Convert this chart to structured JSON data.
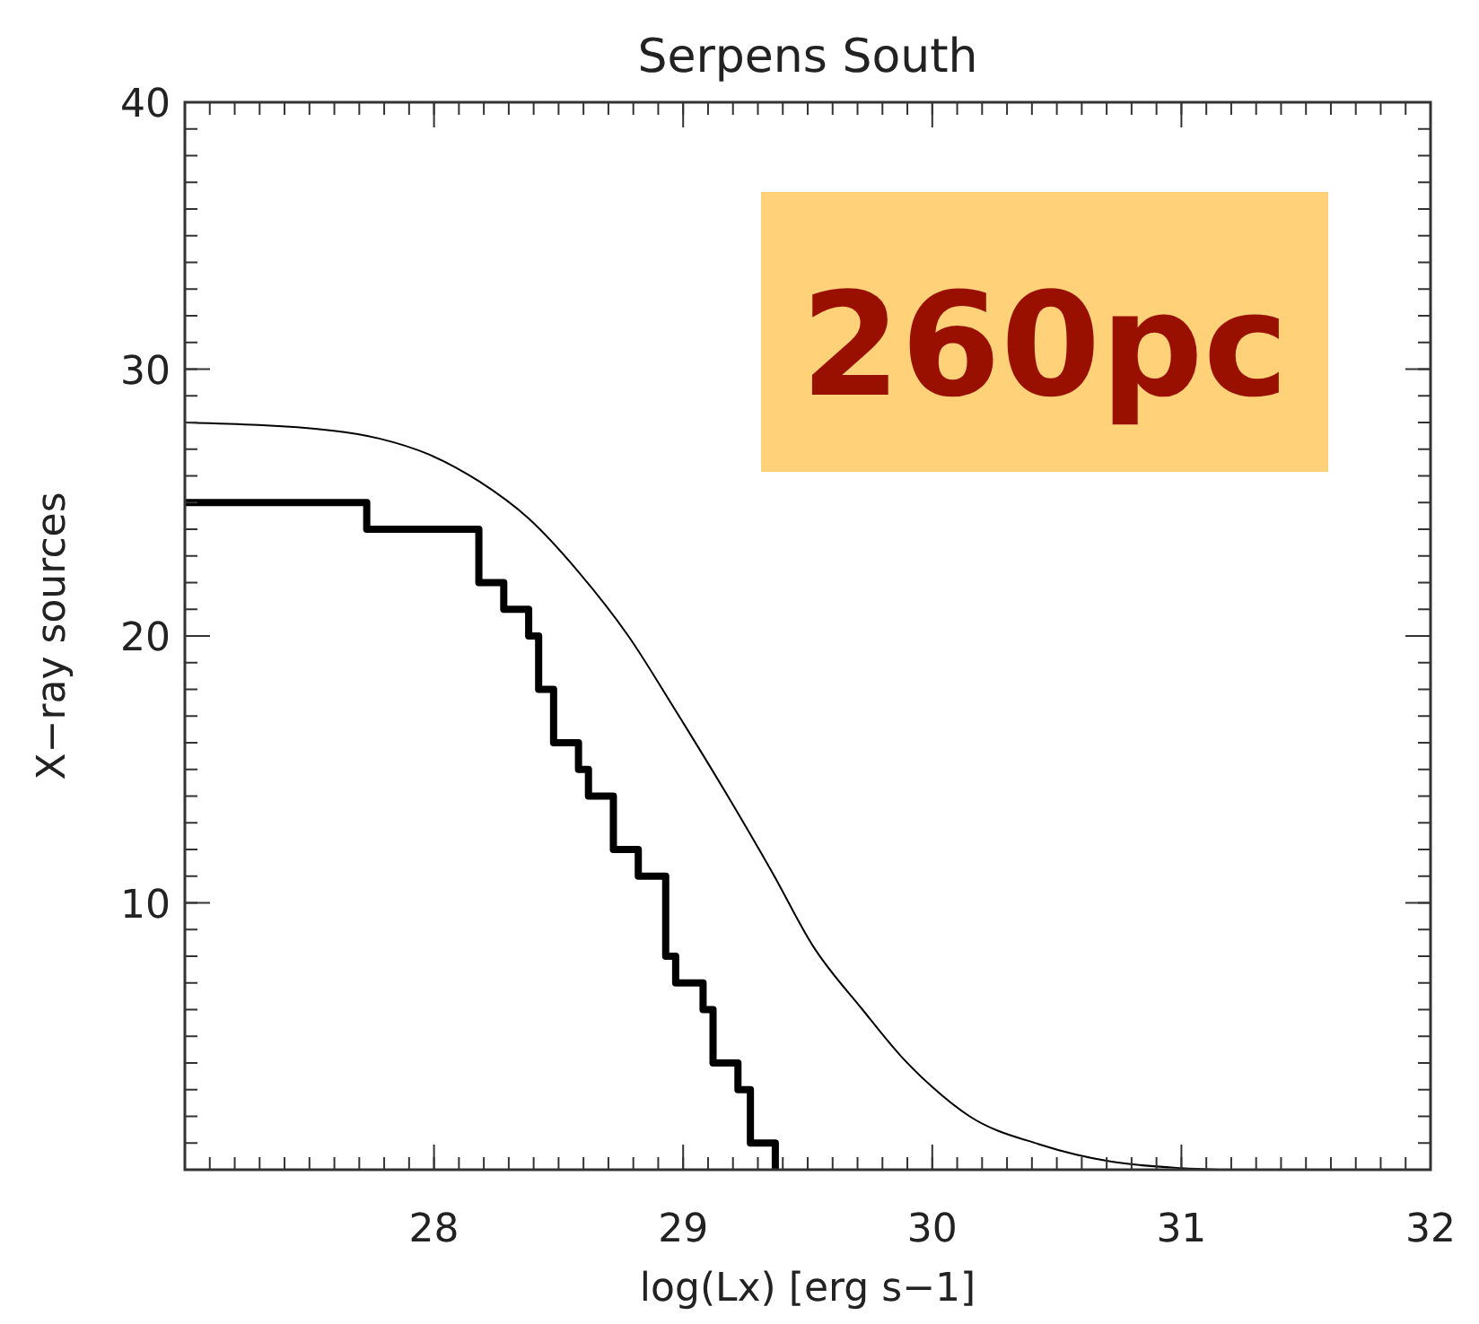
{
  "chart_data": {
    "type": "step",
    "title": "Serpens South",
    "xlabel": "log(Lx) [erg s−1]",
    "ylabel": "X−ray sources",
    "xlim": [
      27,
      32
    ],
    "xticks": [
      28,
      29,
      30,
      31,
      32
    ],
    "ylim": [
      0,
      40
    ],
    "yticks": [
      10,
      20,
      30,
      40
    ],
    "series": [
      {
        "color": "#000000",
        "x": [
          27,
          27.73,
          28.18,
          28.28,
          28.38,
          28.42,
          28.48,
          28.58,
          28.62,
          28.72,
          28.82,
          28.93,
          28.97,
          29.08,
          29.12,
          29.22,
          29.27,
          29.37
        ],
        "values": [
          25,
          24,
          22,
          21,
          20,
          18,
          16,
          15,
          14,
          12,
          11,
          8,
          7,
          6,
          4,
          3,
          1,
          0
        ]
      },
      {
        "type": "line",
        "color": "#000000",
        "x": [
          27,
          27.59,
          27.78,
          27.98,
          28.18,
          28.38,
          28.58,
          28.78,
          28.97,
          29.16,
          29.36,
          29.52,
          29.72,
          29.87,
          30,
          30.15,
          30.43,
          30.72,
          31,
          31.15
        ],
        "values": [
          28,
          27.7,
          27.4,
          26.8,
          25.8,
          24.4,
          22.4,
          20,
          17.2,
          14.3,
          11.1,
          8.4,
          6,
          4.3,
          3.1,
          2,
          0.95,
          0.3,
          0.06,
          0
        ]
      }
    ],
    "annotations": [
      "260pc"
    ],
    "grid": false
  }
}
